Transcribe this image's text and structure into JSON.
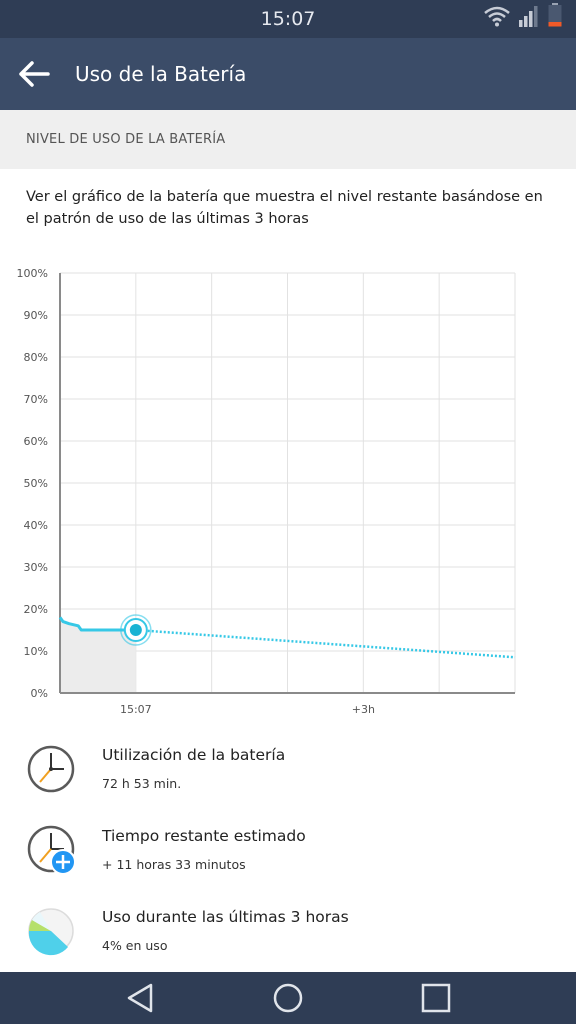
{
  "status_bar": {
    "time": "15:07"
  },
  "app_bar": {
    "title": "Uso de la Batería"
  },
  "section": {
    "title": "NIVEL DE USO DE LA BATERÍA"
  },
  "description": "Ver el gráfico de la batería que muestra el nivel restante basándose en el patrón de uso de las últimas 3 horas",
  "chart_data": {
    "type": "line",
    "y_tick_labels": [
      "0%",
      "10%",
      "20%",
      "30%",
      "40%",
      "50%",
      "60%",
      "70%",
      "80%",
      "90%",
      "100%"
    ],
    "ylim": [
      0,
      100
    ],
    "x_tick_labels": [
      "15:07",
      "+3h"
    ],
    "grid": true,
    "series": [
      {
        "style": "solid",
        "x": [
          -1.0,
          -0.96,
          -0.88,
          -0.76,
          -0.72,
          0.0
        ],
        "y": [
          18,
          17,
          16.5,
          16,
          15,
          15
        ]
      },
      {
        "style": "dotted",
        "x": [
          0.0,
          5.0
        ],
        "y": [
          15,
          8.5
        ]
      }
    ],
    "current_point": {
      "x": 0.0,
      "y": 15
    },
    "colors": {
      "line": "#36c8e6",
      "used_fill": "#ececec",
      "axis": "#8a8a8a",
      "grid": "#e2e2e2"
    }
  },
  "items": [
    {
      "title": "Utilización de la batería",
      "subtitle": "72 h 53 min.",
      "icon": "clock-icon"
    },
    {
      "title": "Tiempo restante estimado",
      "subtitle": "+ 11 horas 33 minutos",
      "icon": "clock-add-icon"
    },
    {
      "title": "Uso durante las últimas 3 horas",
      "subtitle": "4% en uso",
      "icon": "pie-chart-icon"
    }
  ],
  "nav": {
    "icons": [
      "back-nav-icon",
      "home-nav-icon",
      "recents-nav-icon"
    ]
  }
}
